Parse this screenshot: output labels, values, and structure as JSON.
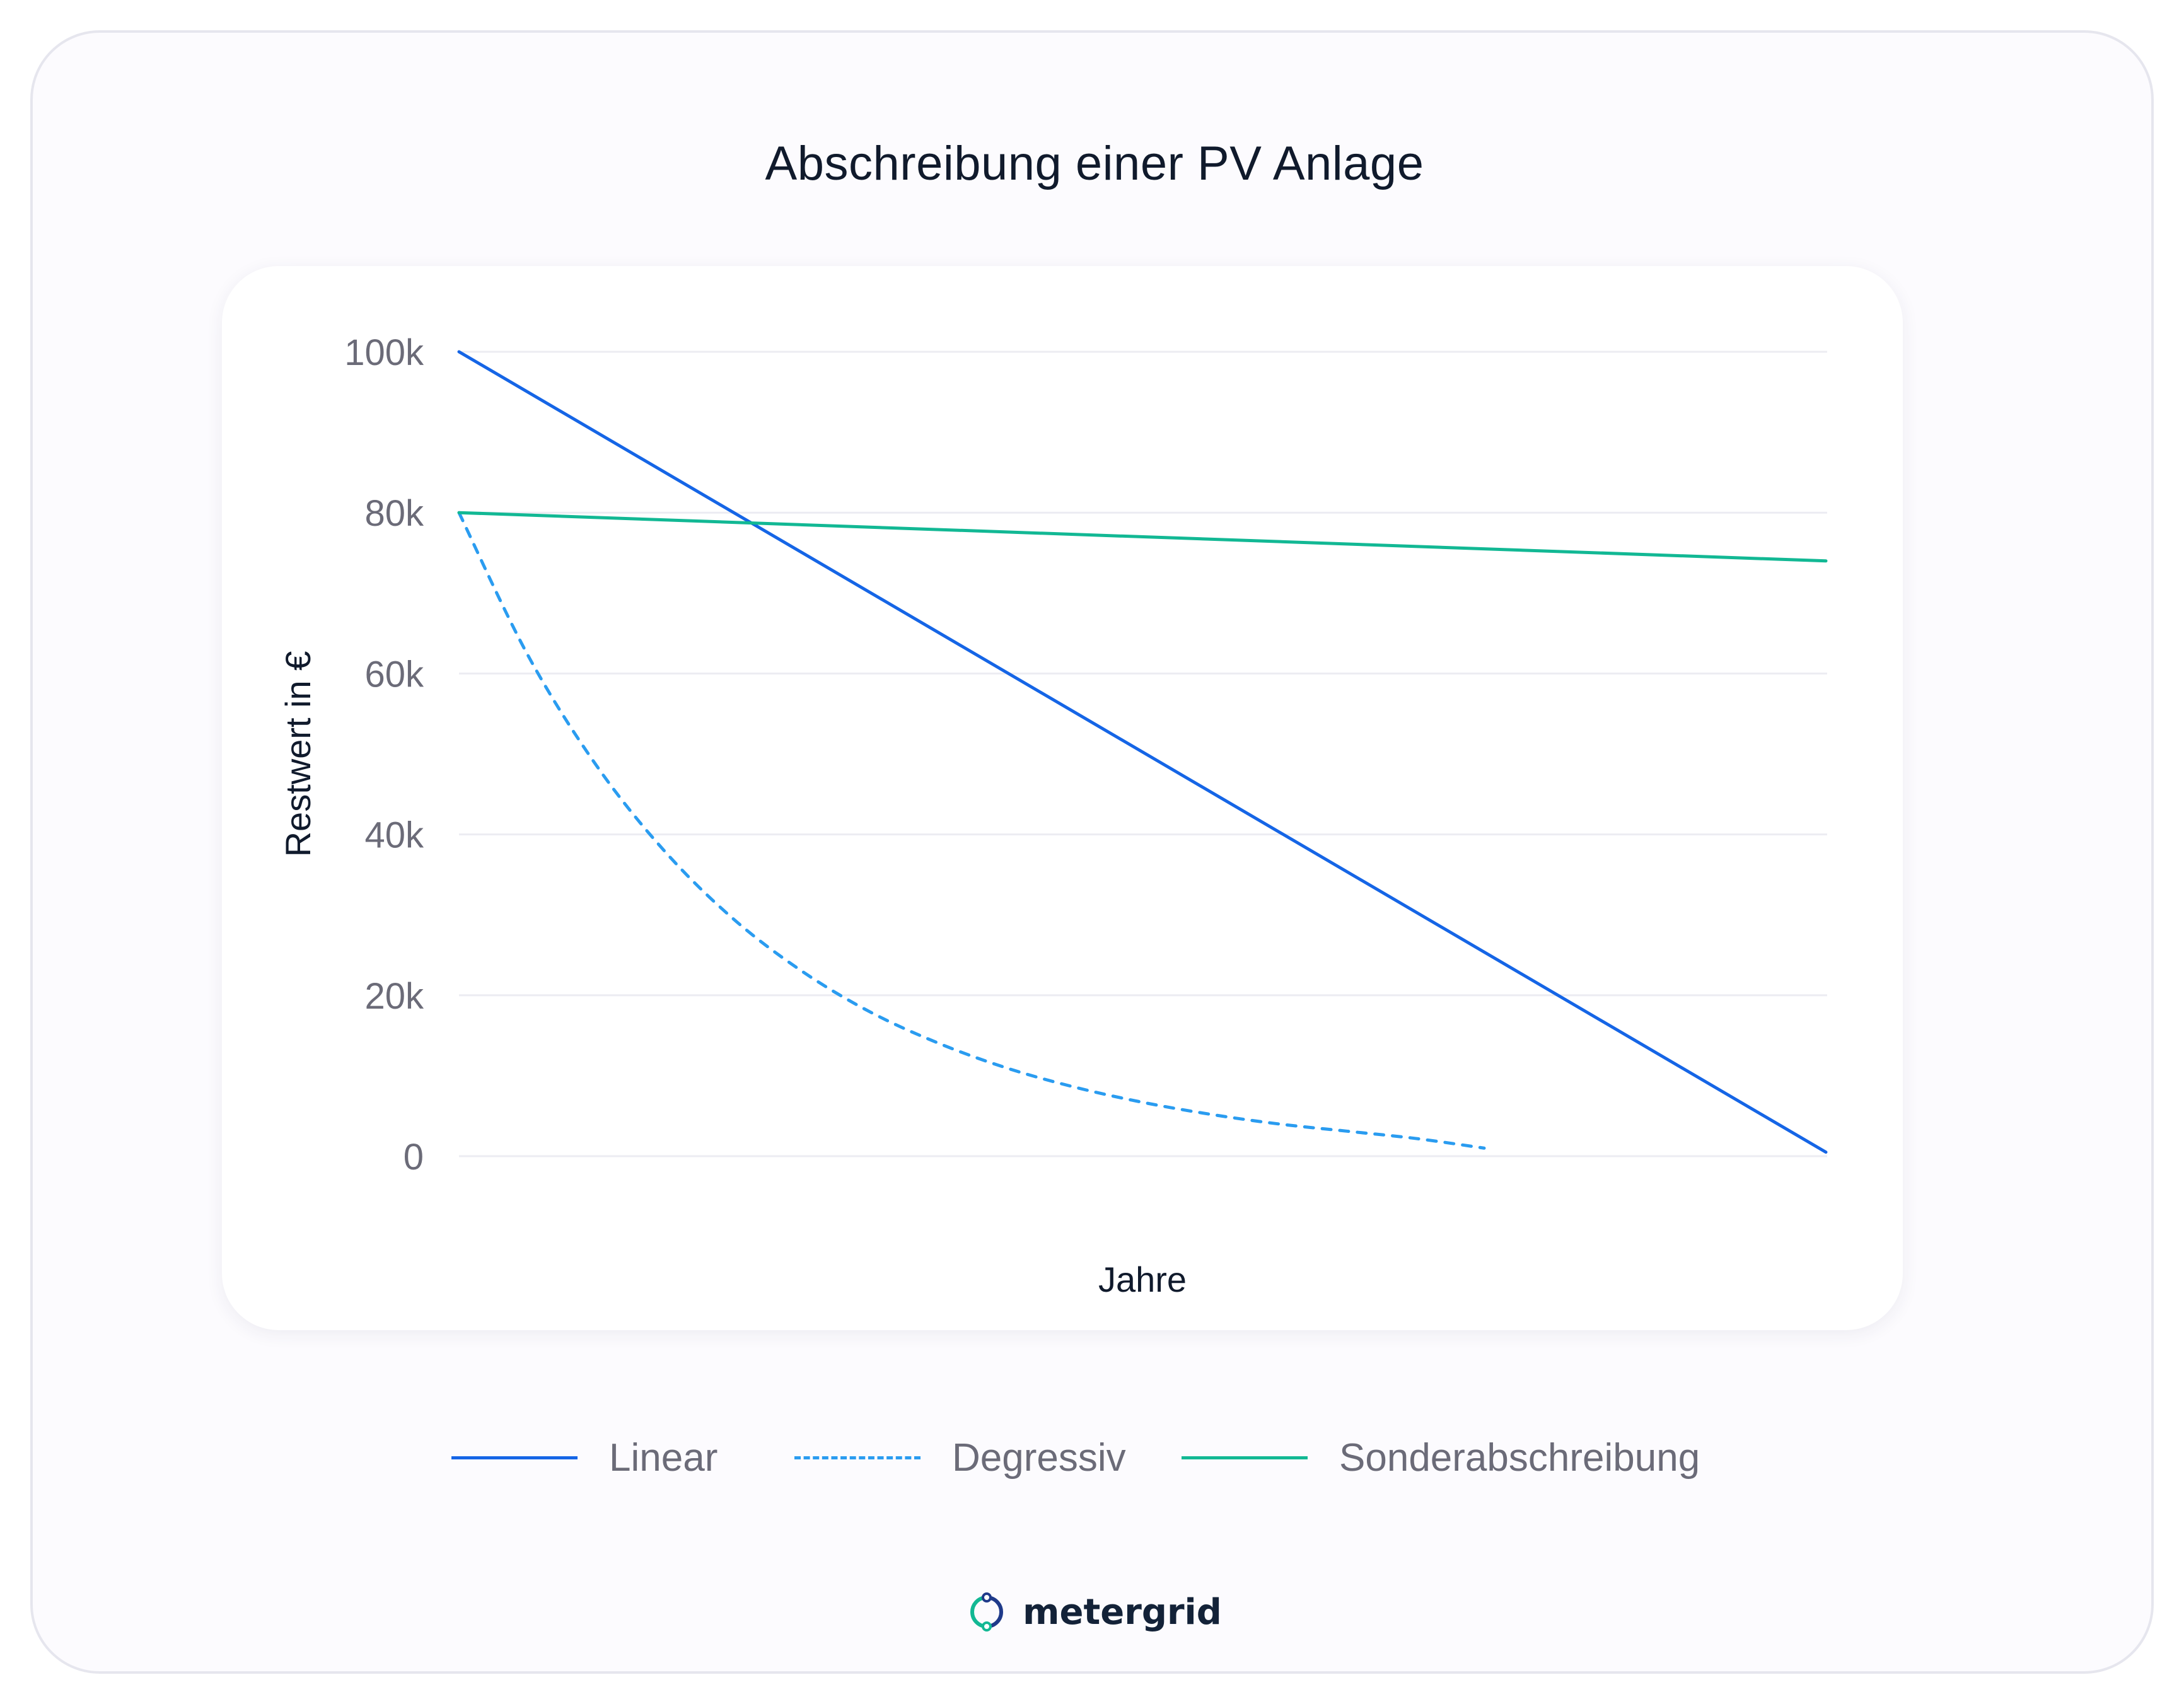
{
  "title": "Abschreibung einer PV Anlage",
  "colors": {
    "linear": "#1565e6",
    "degressiv": "#2a9cf0",
    "sonder": "#12b894",
    "grid": "#ececf2",
    "tick_text": "#6b6b78",
    "axis_title": "#101a2c"
  },
  "chart_data": {
    "type": "line",
    "title": "Abschreibung einer PV Anlage",
    "xlabel": "Jahre",
    "ylabel": "Restwert in €",
    "ylim": [
      0,
      100000
    ],
    "xlim": [
      0,
      20
    ],
    "y_ticks": [
      {
        "value": 0,
        "label": "0"
      },
      {
        "value": 20000,
        "label": "20k"
      },
      {
        "value": 40000,
        "label": "40k"
      },
      {
        "value": 60000,
        "label": "60k"
      },
      {
        "value": 80000,
        "label": "80k"
      },
      {
        "value": 100000,
        "label": "100k"
      }
    ],
    "grid": true,
    "legend_position": "bottom",
    "series": [
      {
        "name": "Linear",
        "key": "linear",
        "style": "solid",
        "x": [
          0,
          20
        ],
        "values": [
          100000,
          500
        ]
      },
      {
        "name": "Degressiv",
        "key": "degressiv",
        "style": "dashed",
        "x": [
          0,
          1,
          2,
          3,
          4,
          5,
          6,
          7,
          8,
          9,
          10,
          11,
          12,
          13,
          14,
          15
        ],
        "values": [
          80000,
          62400,
          48700,
          38000,
          29600,
          23100,
          18000,
          14100,
          11000,
          8600,
          6700,
          5200,
          4000,
          3100,
          2200,
          1000
        ]
      },
      {
        "name": "Sonderabschreibung",
        "key": "sonder",
        "style": "solid",
        "x": [
          0,
          20
        ],
        "values": [
          80000,
          74000
        ]
      }
    ]
  },
  "brand": {
    "name": "metergrid"
  }
}
